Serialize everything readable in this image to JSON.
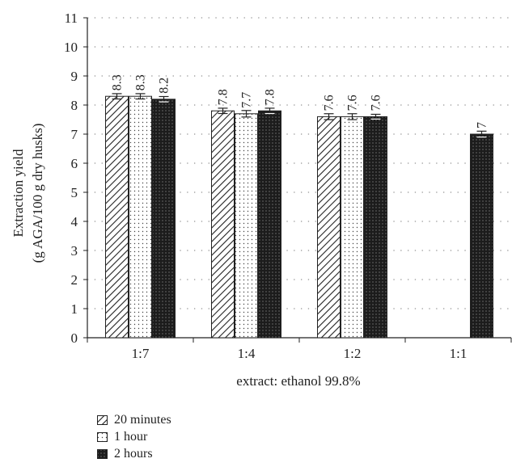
{
  "chart_data": {
    "type": "bar",
    "title": "",
    "xlabel": "extract: ethanol 99.8%",
    "ylabel_lines": [
      "Extraction yield",
      "(g AGA/100 g dry husks)"
    ],
    "ylim": [
      0,
      11
    ],
    "yticks": [
      "0",
      "1",
      "2",
      "3",
      "4",
      "5",
      "6",
      "7",
      "8",
      "9",
      "10",
      "11"
    ],
    "categories": [
      "1:7",
      "1:4",
      "1:2",
      "1:1"
    ],
    "grid": "dotted horizontal",
    "legend_position": "bottom-left",
    "series": [
      {
        "name": "20 minutes",
        "pattern": "diagonal-hatch",
        "values": [
          8.3,
          7.8,
          7.6,
          null
        ],
        "labels": [
          "8.3",
          "7.8",
          "7.6",
          ""
        ],
        "errors": [
          0.05,
          0.05,
          0.06,
          null
        ]
      },
      {
        "name": "1 hour",
        "pattern": "dotted-light",
        "values": [
          8.3,
          7.7,
          7.6,
          null
        ],
        "labels": [
          "8.3",
          "7.7",
          "7.6",
          ""
        ],
        "errors": [
          0.05,
          0.07,
          0.06,
          null
        ]
      },
      {
        "name": "2 hours",
        "pattern": "dark-dotted",
        "values": [
          8.2,
          7.8,
          7.6,
          7.0
        ],
        "labels": [
          "8.2",
          "7.8",
          "7.6",
          "7"
        ],
        "errors": [
          0.05,
          0.05,
          0.04,
          0.06
        ]
      }
    ]
  }
}
